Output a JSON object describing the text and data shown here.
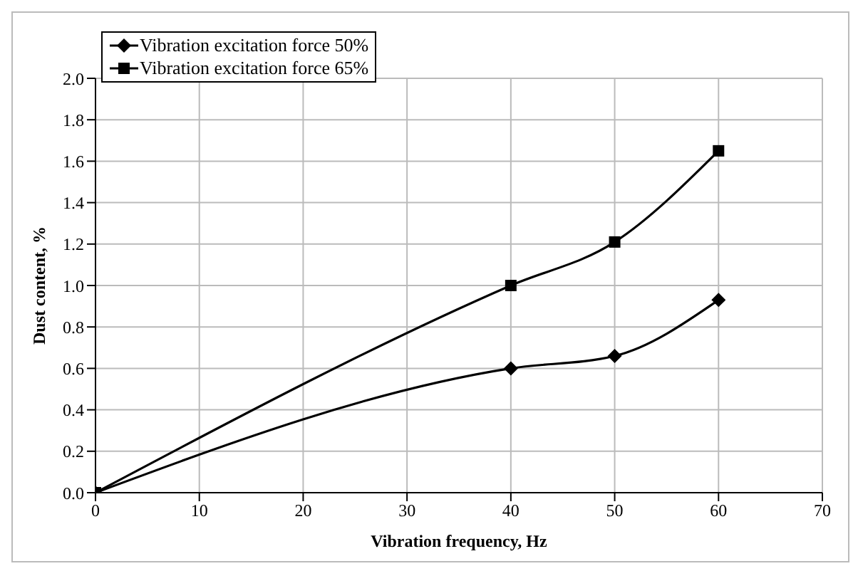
{
  "chart_data": {
    "type": "line",
    "xlabel": "Vibration frequency, Hz",
    "ylabel": "Dust content, %",
    "x": [
      0,
      40,
      50,
      60
    ],
    "series": [
      {
        "name": "Vibration excitation force 50%",
        "color": "#000000",
        "marker": "diamond",
        "values": [
          0,
          0.6,
          0.66,
          0.93
        ]
      },
      {
        "name": "Vibration excitation force 65%",
        "color": "#000000",
        "marker": "square",
        "values": [
          0,
          1.0,
          1.21,
          1.65
        ]
      }
    ],
    "xlim": [
      0,
      70
    ],
    "xticks": [
      0,
      10,
      20,
      30,
      40,
      50,
      60,
      70
    ],
    "ylim": [
      0,
      2.0
    ],
    "yticks": [
      {
        "value": 0,
        "label": "0.0"
      },
      {
        "value": 0.2,
        "label": "0.2"
      },
      {
        "value": 0.4,
        "label": "0.4"
      },
      {
        "value": 0.6,
        "label": "0.6"
      },
      {
        "value": 0.8,
        "label": "0.8"
      },
      {
        "value": 1.0,
        "label": "1.0"
      },
      {
        "value": 1.2,
        "label": "1.2"
      },
      {
        "value": 1.4,
        "label": "1.4"
      },
      {
        "value": 1.6,
        "label": "1.6"
      },
      {
        "value": 1.8,
        "label": "1.8"
      },
      {
        "value": 2.0,
        "label": "2.0"
      }
    ],
    "grid": true,
    "legend": "top left",
    "line_style": "solid"
  }
}
